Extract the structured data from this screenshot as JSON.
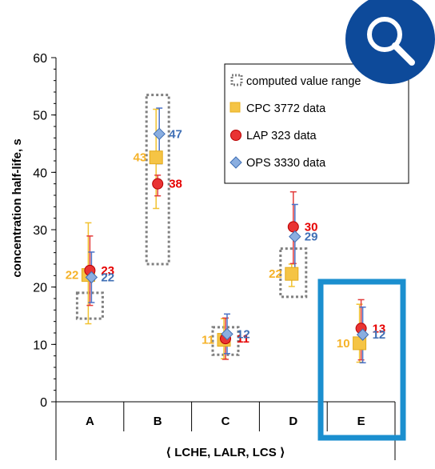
{
  "chart_data": {
    "type": "scatter",
    "ylabel": "concentration half-life, s",
    "xlabel": "⟨ LCHE, LALR, LCS ⟩",
    "ylim": [
      0,
      60
    ],
    "yticks": [
      0,
      10,
      20,
      30,
      40,
      50,
      60
    ],
    "categories": [
      "A",
      "B",
      "C",
      "D",
      "E"
    ],
    "grid": false,
    "legend_position": "top-right",
    "computed_value_range": {
      "name": "computed value range",
      "color": "#7f7f7f",
      "ranges": [
        [
          14.5,
          19
        ],
        [
          24,
          53.5
        ],
        [
          8.2,
          13
        ],
        [
          18.3,
          26.7
        ],
        [
          null,
          null
        ]
      ]
    },
    "series": [
      {
        "name": "CPC 3772 data",
        "marker": "square",
        "color": "#f5c445",
        "values": [
          22.1,
          42.6,
          10.8,
          22.3,
          10.2
        ],
        "error_low": [
          13.6,
          33.7,
          7.5,
          20.1,
          6.9
        ],
        "error_high": [
          31.2,
          51.0,
          14.5,
          24.0,
          17.0
        ],
        "labels": [
          "22",
          "43",
          "11",
          "22",
          "10"
        ]
      },
      {
        "name": "LAP 323 data",
        "marker": "circle",
        "color": "#e93333",
        "values": [
          22.9,
          38.0,
          11.0,
          30.5,
          12.8
        ],
        "error_low": [
          16.8,
          35.9,
          7.4,
          24.1,
          7.3
        ],
        "error_high": [
          28.9,
          39.5,
          14.6,
          36.6,
          17.8
        ],
        "labels": [
          "23",
          "38",
          "11",
          "30",
          "13"
        ]
      },
      {
        "name": "OPS 3330 data",
        "marker": "diamond",
        "color": "#8aaee0",
        "values": [
          21.7,
          46.7,
          11.8,
          28.8,
          11.7
        ],
        "error_low": [
          17.3,
          41.5,
          8.4,
          23.3,
          6.8
        ],
        "error_high": [
          26.1,
          51.2,
          15.3,
          34.4,
          16.5
        ],
        "labels": [
          "22",
          "47",
          "12",
          "29",
          "12"
        ]
      }
    ],
    "label_colors": {
      "CPC 3772 data": "#f5b228",
      "LAP 323 data": "#e60000",
      "OPS 3330 data": "#3f6fb5"
    },
    "errorbar_color": "#4a72c8",
    "highlight_category": "E",
    "highlight_color": "#1b8fcf"
  },
  "icons": {
    "search": "magnifier-icon",
    "search_badge_color": "#0d4a9a"
  }
}
